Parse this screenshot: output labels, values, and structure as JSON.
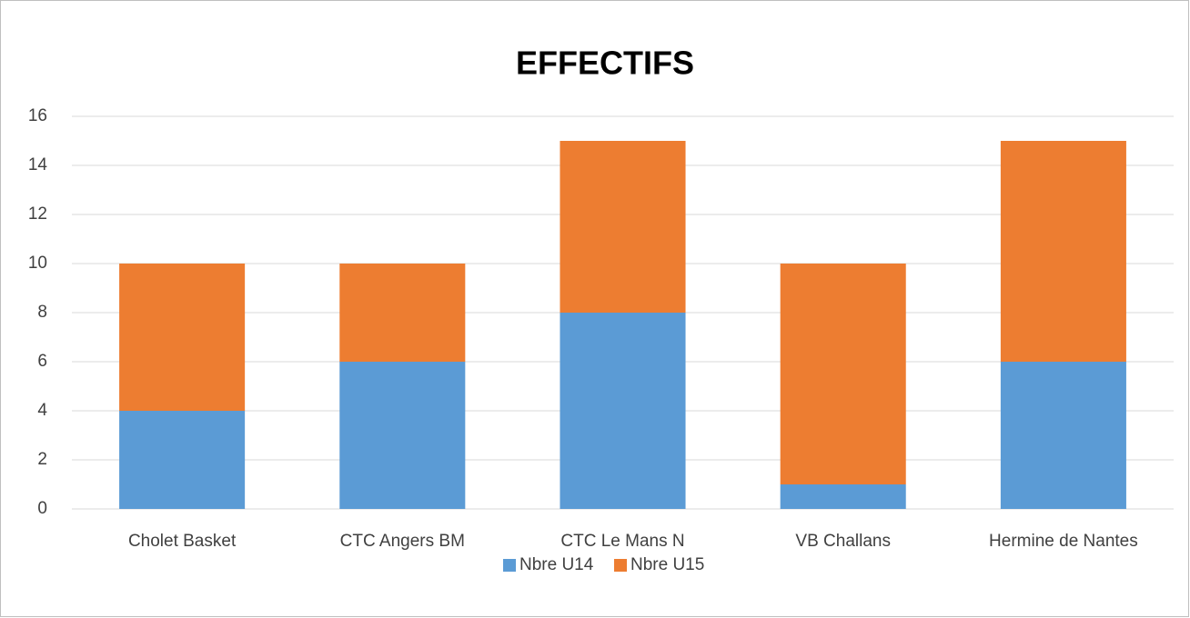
{
  "chart_data": {
    "type": "bar",
    "stacked": true,
    "title": "EFFECTIFS",
    "categories": [
      "Cholet Basket",
      "CTC Angers BM",
      "CTC Le Mans N",
      "VB Challans",
      "Hermine de Nantes"
    ],
    "series": [
      {
        "name": "Nbre U14",
        "color": "#5b9bd5",
        "values": [
          4,
          6,
          8,
          1,
          6
        ]
      },
      {
        "name": "Nbre U15",
        "color": "#ed7d31",
        "values": [
          6,
          4,
          7,
          9,
          9
        ]
      }
    ],
    "ylim": [
      0,
      16
    ],
    "yticks": [
      0,
      2,
      4,
      6,
      8,
      10,
      12,
      14,
      16
    ],
    "grid": true,
    "legend": "bottom"
  }
}
